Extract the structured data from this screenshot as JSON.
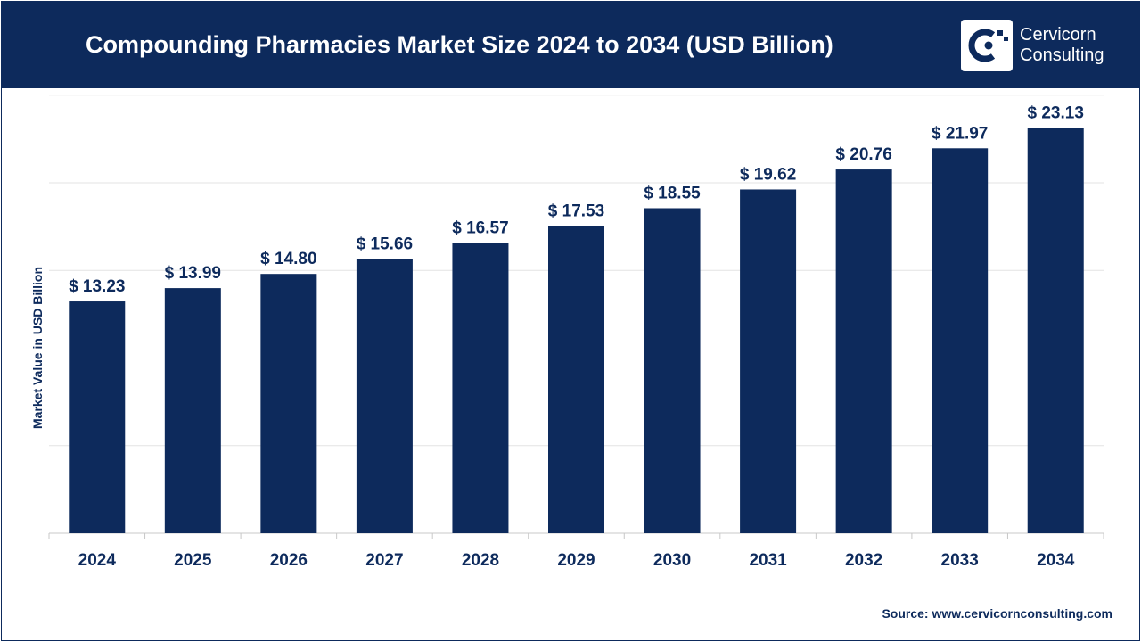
{
  "header": {
    "title": "Compounding Pharmacies Market Size 2024 to 2034 (USD Billion)"
  },
  "logo": {
    "icon": "cervicorn-logo-icon",
    "line1": "Cervicorn",
    "line2": "Consulting"
  },
  "source": "Source: www.cervicornconsulting.com",
  "colors": {
    "header_bg": "#0d2a5c",
    "bar": "#0d2a5c",
    "text": "#0d2a5c"
  },
  "chart_data": {
    "type": "bar",
    "title": "Compounding Pharmacies Market Size 2024 to 2034 (USD Billion)",
    "xlabel": "",
    "ylabel": "Market Value in USD Billion",
    "categories": [
      "2024",
      "2025",
      "2026",
      "2027",
      "2028",
      "2029",
      "2030",
      "2031",
      "2032",
      "2033",
      "2034"
    ],
    "values": [
      13.23,
      13.99,
      14.8,
      15.66,
      16.57,
      17.53,
      18.55,
      19.62,
      20.76,
      21.97,
      23.13
    ],
    "data_labels": [
      "$ 13.23",
      "$ 13.99",
      "$ 14.80",
      "$ 15.66",
      "$ 16.57",
      "$ 17.53",
      "$ 18.55",
      "$ 19.62",
      "$ 20.76",
      "$ 21.97",
      "$ 23.13"
    ],
    "ylim": [
      0,
      25
    ],
    "grid": true,
    "legend": "none"
  }
}
